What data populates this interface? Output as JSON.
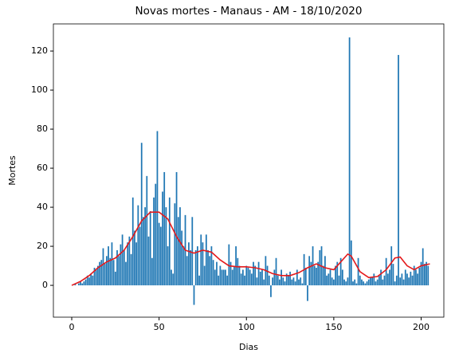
{
  "chart_data": {
    "type": "bar",
    "title": "Novas mortes - Manaus - AM - 18/10/2020",
    "xlabel": "Dias",
    "ylabel": "Mortes",
    "xlim": [
      -10.5,
      213
    ],
    "ylim": [
      -16.3,
      133.9
    ],
    "xticks": [
      0,
      50,
      100,
      150,
      200
    ],
    "yticks": [
      0,
      20,
      40,
      60,
      80,
      100,
      120
    ],
    "grid": false,
    "bars": {
      "color": "#1f77b4",
      "x": [
        0,
        1,
        2,
        3,
        4,
        5,
        6,
        7,
        8,
        9,
        10,
        11,
        12,
        13,
        14,
        15,
        16,
        17,
        18,
        19,
        20,
        21,
        22,
        23,
        24,
        25,
        26,
        27,
        28,
        29,
        30,
        31,
        32,
        33,
        34,
        35,
        36,
        37,
        38,
        39,
        40,
        41,
        42,
        43,
        44,
        45,
        46,
        47,
        48,
        49,
        50,
        51,
        52,
        53,
        54,
        55,
        56,
        57,
        58,
        59,
        60,
        61,
        62,
        63,
        64,
        65,
        66,
        67,
        68,
        69,
        70,
        71,
        72,
        73,
        74,
        75,
        76,
        77,
        78,
        79,
        80,
        81,
        82,
        83,
        84,
        85,
        86,
        87,
        88,
        89,
        90,
        91,
        92,
        93,
        94,
        95,
        96,
        97,
        98,
        99,
        100,
        101,
        102,
        103,
        104,
        105,
        106,
        107,
        108,
        109,
        110,
        111,
        112,
        113,
        114,
        115,
        116,
        117,
        118,
        119,
        120,
        121,
        122,
        123,
        124,
        125,
        126,
        127,
        128,
        129,
        130,
        131,
        132,
        133,
        134,
        135,
        136,
        137,
        138,
        139,
        140,
        141,
        142,
        143,
        144,
        145,
        146,
        147,
        148,
        149,
        150,
        151,
        152,
        153,
        154,
        155,
        156,
        157,
        158,
        159,
        160,
        161,
        162,
        163,
        164,
        165,
        166,
        167,
        168,
        169,
        170,
        171,
        172,
        173,
        174,
        175,
        176,
        177,
        178,
        179,
        180,
        181,
        182,
        183,
        184,
        185,
        186,
        187,
        188,
        189,
        190,
        191,
        192,
        193,
        194,
        195,
        196,
        197,
        198,
        199,
        200,
        201,
        202,
        203,
        204
      ],
      "values": [
        0,
        0,
        1,
        0,
        1,
        2,
        1,
        2,
        3,
        5,
        4,
        6,
        5,
        9,
        8,
        10,
        12,
        13,
        19,
        11,
        15,
        20,
        14,
        22,
        13,
        7,
        18,
        15,
        21,
        26,
        18,
        12,
        22,
        25,
        16,
        45,
        28,
        22,
        41,
        30,
        73,
        35,
        40,
        56,
        25,
        38,
        14,
        45,
        52,
        79,
        32,
        30,
        48,
        58,
        40,
        20,
        45,
        8,
        6,
        42,
        58,
        35,
        40,
        28,
        20,
        36,
        15,
        22,
        18,
        35,
        -10,
        18,
        20,
        5,
        26,
        22,
        10,
        26,
        18,
        15,
        20,
        13,
        8,
        12,
        5,
        10,
        8,
        8,
        8,
        5,
        21,
        12,
        8,
        10,
        20,
        14,
        10,
        6,
        8,
        5,
        10,
        9,
        8,
        6,
        12,
        10,
        4,
        12,
        7,
        8,
        3,
        15,
        10,
        5,
        -6,
        4,
        8,
        14,
        5,
        3,
        8,
        4,
        2,
        6,
        5,
        7,
        3,
        4,
        2,
        8,
        3,
        4,
        1,
        16,
        9,
        -8,
        15,
        12,
        20,
        10,
        9,
        12,
        18,
        20,
        10,
        15,
        5,
        6,
        8,
        4,
        3,
        10,
        12,
        5,
        14,
        8,
        3,
        2,
        4,
        127,
        23,
        2,
        3,
        1,
        14,
        5,
        3,
        2,
        1,
        2,
        3,
        4,
        4,
        6,
        2,
        3,
        5,
        8,
        3,
        5,
        14,
        6,
        8,
        20,
        11,
        2,
        5,
        118,
        4,
        6,
        3,
        8,
        6,
        4,
        7,
        5,
        10,
        8,
        6,
        9,
        12,
        19,
        11,
        12,
        10
      ]
    },
    "line": {
      "color": "#e41a1c",
      "x": [
        0,
        5,
        10,
        15,
        20,
        25,
        30,
        35,
        40,
        45,
        50,
        55,
        60,
        65,
        70,
        75,
        80,
        85,
        90,
        95,
        100,
        105,
        110,
        115,
        120,
        125,
        130,
        135,
        140,
        145,
        150,
        155,
        158,
        160,
        165,
        170,
        175,
        180,
        185,
        188,
        192,
        196,
        200,
        205
      ],
      "values": [
        0,
        2,
        5,
        9,
        12,
        14,
        18,
        25,
        33,
        37.5,
        37.5,
        34,
        25,
        18,
        16.5,
        18,
        17,
        13,
        10,
        9.5,
        9.5,
        9,
        8,
        6,
        5,
        5,
        6.5,
        9,
        11,
        9,
        8,
        13,
        16,
        15,
        7,
        4,
        4.5,
        8,
        14,
        14.5,
        10,
        8,
        10,
        11
      ]
    }
  }
}
